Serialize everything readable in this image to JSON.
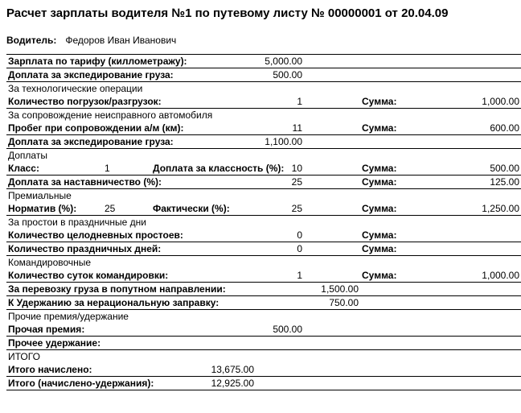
{
  "title": "Расчет зарплаты водителя №1 по путевому листу № 00000001 от 20.04.09",
  "driver_label": "Водитель:",
  "driver_name": "Федоров Иван Иванович",
  "rows": {
    "r1_lbl": "Зарплата по тарифу (киллометражу):",
    "r1_val": "5,000.00",
    "r2_lbl": "Доплата за экспедирование груза:",
    "r2_val": "500.00",
    "r3_lbl": "За технологические операции",
    "r4_lbl": "Количество погрузок/разгрузок:",
    "r4_val": "1",
    "r4_sum_lbl": "Сумма:",
    "r4_sum": "1,000.00",
    "r5_lbl": "За сопровождение неисправного автомобиля",
    "r6_lbl": "Пробег при сопровождении а/м (км):",
    "r6_val": "11",
    "r6_sum_lbl": "Сумма:",
    "r6_sum": "600.00",
    "r7_lbl": "Доплата за экспедирование груза:",
    "r7_val": "1,100.00",
    "r8_lbl": "Доплаты",
    "r9_class_lbl": "Класс:",
    "r9_class_val": "1",
    "r9_pct_lbl": "Доплата за классность (%):",
    "r9_pct_val": "10",
    "r9_sum_lbl": "Сумма:",
    "r9_sum": "500.00",
    "r10_lbl": "Доплата за наставничество (%):",
    "r10_val": "25",
    "r10_sum_lbl": "Сумма:",
    "r10_sum": "125.00",
    "r11_lbl": "Премиальные",
    "r12_lbl": "Норматив (%):",
    "r12_val": "25",
    "r12_fact_lbl": "Фактически (%):",
    "r12_fact_val": "25",
    "r12_sum_lbl": "Сумма:",
    "r12_sum": "1,250.00",
    "r13_lbl": "За простои в праздничные дни",
    "r14_lbl": "Количество целодневных простоев:",
    "r14_val": "0",
    "r14_sum_lbl": "Сумма:",
    "r15_lbl": "Количество праздничных дней:",
    "r15_val": "0",
    "r15_sum_lbl": "Сумма:",
    "r16_lbl": "Командировочные",
    "r17_lbl": "Количество суток командировки:",
    "r17_val": "1",
    "r17_sum_lbl": "Сумма:",
    "r17_sum": "1,000.00",
    "r18_lbl": "За перевозку груза в попутном направлении:",
    "r18_val": "1,500.00",
    "r19_lbl": "К Удержанию за нерациональную заправку:",
    "r19_val": "750.00",
    "r20_lbl": "Прочие премия/удержание",
    "r21_lbl": "Прочая премия:",
    "r21_val": "500.00",
    "r22_lbl": "Прочее удержание:",
    "r23_lbl": "ИТОГО",
    "r24_lbl": "Итого начислено:",
    "r24_val": "13,675.00",
    "r25_lbl": "Итого (начислено-удержания):",
    "r25_val": "12,925.00"
  }
}
